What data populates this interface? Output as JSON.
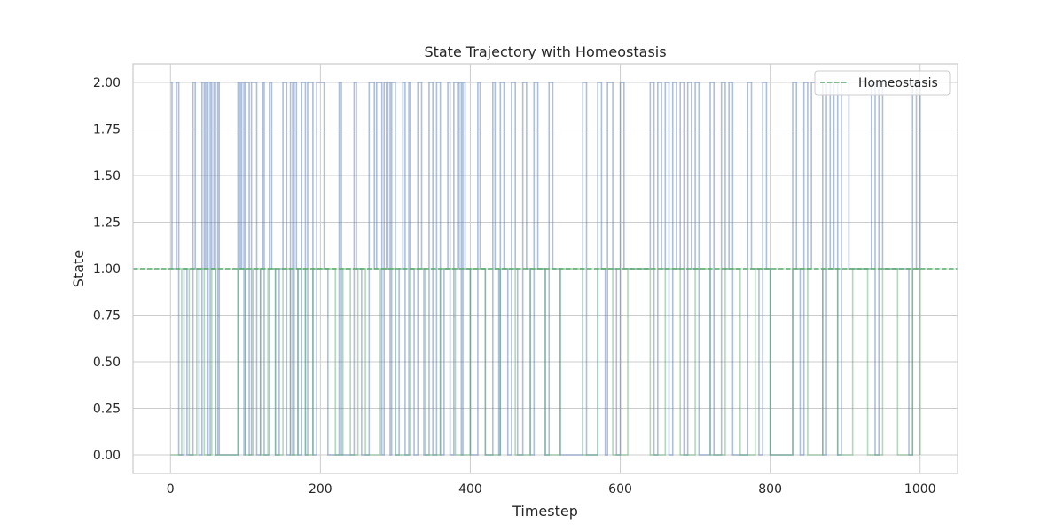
{
  "chart_data": {
    "type": "line",
    "title": "State Trajectory with Homeostasis",
    "xlabel": "Timestep",
    "ylabel": "State",
    "xlim": [
      -50,
      1050
    ],
    "ylim": [
      -0.1,
      2.1
    ],
    "x_ticks": [
      0,
      200,
      400,
      600,
      800,
      1000
    ],
    "y_ticks": [
      "0.00",
      "0.25",
      "0.50",
      "0.75",
      "1.00",
      "1.25",
      "1.50",
      "1.75",
      "2.00"
    ],
    "grid": true,
    "legend": {
      "placement": "top-right",
      "entries": [
        "Homeostasis"
      ]
    },
    "homeostasis": {
      "name": "Homeostasis",
      "y": 1.0,
      "color": "#55a868",
      "style": "dashed"
    },
    "series": [
      {
        "color": "#4c72b0",
        "alpha": 0.45,
        "step": "post",
        "x": [
          0,
          2,
          8,
          11,
          18,
          22,
          30,
          33,
          38,
          42,
          45,
          47,
          50,
          53,
          55,
          58,
          60,
          63,
          65,
          70,
          90,
          93,
          95,
          98,
          100,
          105,
          108,
          115,
          120,
          123,
          125,
          132,
          135,
          140,
          145,
          150,
          155,
          160,
          163,
          165,
          168,
          170,
          175,
          180,
          183,
          190,
          195,
          200,
          205,
          210,
          225,
          228,
          245,
          248,
          255,
          265,
          272,
          275,
          282,
          285,
          288,
          290,
          293,
          295,
          300,
          305,
          310,
          313,
          318,
          320,
          325,
          330,
          335,
          338,
          345,
          350,
          355,
          360,
          365,
          370,
          373,
          378,
          383,
          385,
          388,
          390,
          393,
          400,
          410,
          413,
          420,
          430,
          433,
          438,
          440,
          445,
          450,
          455,
          460,
          463,
          470,
          475,
          480,
          485,
          490,
          500,
          505,
          510,
          520,
          550,
          555,
          570,
          575,
          580,
          583,
          590,
          595,
          600,
          605,
          640,
          645,
          650,
          655,
          660,
          665,
          670,
          675,
          680,
          685,
          690,
          695,
          700,
          705,
          720,
          725,
          735,
          740,
          745,
          750,
          770,
          775,
          785,
          790,
          795,
          800,
          830,
          835,
          840,
          845,
          850,
          855,
          870,
          875,
          880,
          885,
          890,
          895,
          905,
          935,
          940,
          945,
          950,
          985,
          990,
          995,
          1000
        ],
        "y": [
          2,
          1,
          2,
          0,
          1,
          0,
          2,
          1,
          0,
          2,
          1,
          2,
          0,
          2,
          1,
          2,
          0,
          2,
          0,
          0,
          2,
          1,
          2,
          0,
          2,
          0,
          2,
          0,
          1,
          2,
          0,
          2,
          1,
          0,
          1,
          2,
          0,
          2,
          0,
          2,
          1,
          0,
          2,
          0,
          2,
          0,
          2,
          2,
          1,
          0,
          2,
          0,
          2,
          1,
          0,
          2,
          1,
          2,
          0,
          2,
          1,
          2,
          0,
          2,
          0,
          1,
          2,
          0,
          2,
          1,
          0,
          2,
          1,
          0,
          2,
          0,
          2,
          0,
          1,
          2,
          0,
          2,
          1,
          2,
          0,
          2,
          1,
          0,
          2,
          1,
          0,
          2,
          1,
          0,
          2,
          1,
          0,
          2,
          1,
          0,
          2,
          1,
          0,
          2,
          1,
          0,
          2,
          1,
          0,
          2,
          0,
          2,
          1,
          0,
          2,
          1,
          0,
          2,
          1,
          2,
          0,
          2,
          1,
          2,
          0,
          2,
          1,
          2,
          0,
          2,
          1,
          2,
          0,
          2,
          0,
          2,
          1,
          2,
          0,
          2,
          1,
          0,
          2,
          1,
          0,
          2,
          1,
          0,
          2,
          1,
          2,
          0,
          2,
          1,
          2,
          0,
          2,
          1,
          2,
          0,
          2,
          1,
          0,
          2,
          1,
          2
        ]
      },
      {
        "color": "#55a868",
        "alpha": 0.45,
        "step": "post",
        "x": [
          0,
          15,
          25,
          35,
          45,
          55,
          60,
          70,
          90,
          100,
          110,
          120,
          130,
          140,
          150,
          160,
          170,
          180,
          190,
          220,
          230,
          240,
          250,
          260,
          280,
          300,
          320,
          340,
          360,
          380,
          400,
          420,
          440,
          460,
          480,
          500,
          520,
          550,
          570,
          590,
          610,
          640,
          660,
          680,
          700,
          720,
          740,
          760,
          780,
          800,
          830,
          850,
          870,
          890,
          910,
          930,
          950,
          970,
          990,
          1000
        ],
        "y": [
          0,
          1,
          0,
          1,
          0,
          1,
          0,
          0,
          1,
          0,
          1,
          0,
          1,
          0,
          1,
          0,
          1,
          0,
          1,
          0,
          1,
          0,
          1,
          0,
          1,
          0,
          1,
          0,
          1,
          0,
          1,
          0,
          1,
          0,
          1,
          0,
          1,
          0,
          1,
          0,
          1,
          0,
          1,
          0,
          1,
          0,
          1,
          0,
          1,
          0,
          1,
          0,
          1,
          0,
          1,
          0,
          1,
          0,
          1,
          0
        ]
      }
    ]
  }
}
